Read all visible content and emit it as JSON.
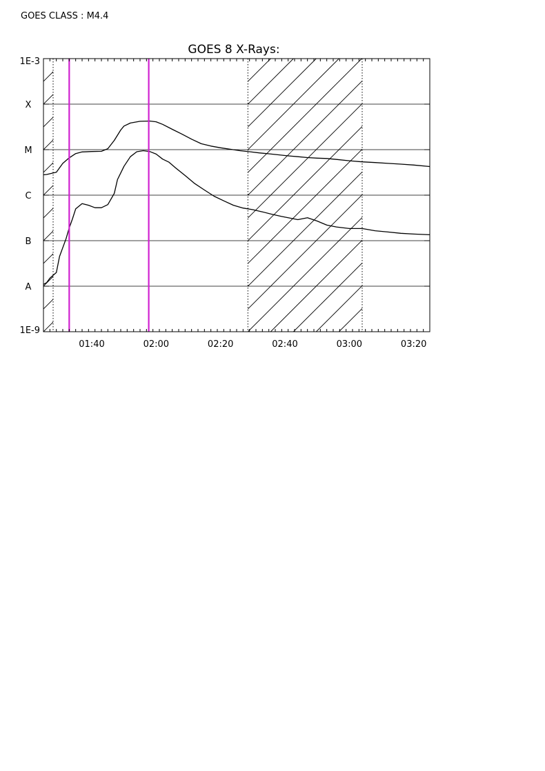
{
  "header": {
    "goes_class_text": "GOES CLASS : M4.4"
  },
  "colors": {
    "marker": "#d020d0",
    "curve": "#000000",
    "grid": "#000000"
  },
  "chart_data": {
    "type": "line",
    "title": "GOES 8 X-Rays:",
    "xlabel": "",
    "ylabel": "",
    "y_scale": "log",
    "ylim": [
      1e-09,
      0.001
    ],
    "xlim_minutes": [
      85,
      205
    ],
    "x_ticks": [
      {
        "minutes": 100,
        "label": "01:40"
      },
      {
        "minutes": 120,
        "label": "02:00"
      },
      {
        "minutes": 140,
        "label": "02:20"
      },
      {
        "minutes": 160,
        "label": "02:40"
      },
      {
        "minutes": 180,
        "label": "03:00"
      },
      {
        "minutes": 200,
        "label": "03:20"
      }
    ],
    "y_ticks": [
      {
        "value": 0.001,
        "label": "1E-3"
      },
      {
        "value": 0.0001,
        "label": "X"
      },
      {
        "value": 1e-05,
        "label": "M"
      },
      {
        "value": 1e-06,
        "label": "C"
      },
      {
        "value": 1e-07,
        "label": "B"
      },
      {
        "value": 1e-08,
        "label": "A"
      },
      {
        "value": 1e-09,
        "label": "1E-9"
      }
    ],
    "grid_lines_at": [
      0.0001,
      1e-05,
      1e-06,
      1e-07,
      1e-08
    ],
    "shaded_intervals_minutes": [
      [
        85,
        88
      ],
      [
        148.5,
        184
      ]
    ],
    "vertical_markers_minutes": [
      93,
      117.7
    ],
    "series": [
      {
        "x": [
          85,
          86,
          89,
          91,
          93,
          95,
          97,
          100,
          103,
          105,
          107,
          109,
          110,
          112,
          115,
          118,
          120,
          122,
          125,
          128,
          131,
          134,
          137,
          140,
          143,
          146,
          149,
          152,
          155,
          158,
          161,
          164,
          167,
          170,
          173,
          176,
          180,
          184,
          188,
          192,
          196,
          200,
          205
        ],
        "y": [
          2.8e-06,
          2.85e-06,
          3.2e-06,
          5e-06,
          6.6e-06,
          8.2e-06,
          8.9e-06,
          9.1e-06,
          9.2e-06,
          1.05e-05,
          1.6e-05,
          2.7e-05,
          3.3e-05,
          3.85e-05,
          4.2e-05,
          4.25e-05,
          4.1e-05,
          3.6e-05,
          2.8e-05,
          2.2e-05,
          1.7e-05,
          1.35e-05,
          1.2e-05,
          1.1e-05,
          1.02e-05,
          9.5e-06,
          9e-06,
          8.5e-06,
          8.1e-06,
          7.7e-06,
          7.3e-06,
          7e-06,
          6.7e-06,
          6.5e-06,
          6.4e-06,
          6.1e-06,
          5.7e-06,
          5.4e-06,
          5.2e-06,
          5e-06,
          4.8e-06,
          4.6e-06,
          4.25e-06
        ]
      },
      {
        "x": [
          85,
          86,
          87,
          89,
          90,
          92,
          93,
          94,
          95,
          97,
          99,
          101,
          103,
          105,
          107,
          108,
          110,
          112,
          114,
          116,
          118,
          120,
          122,
          124,
          126,
          129,
          132,
          135,
          138,
          141,
          144,
          147,
          150,
          153,
          156,
          159,
          162,
          164,
          167,
          170,
          173,
          176,
          180,
          184,
          188,
          192,
          196,
          200,
          205
        ],
        "y": [
          1.1e-08,
          1.2e-08,
          1.5e-08,
          2e-08,
          4.5e-08,
          1.1e-07,
          1.9e-07,
          3e-07,
          5e-07,
          6.5e-07,
          6e-07,
          5.3e-07,
          5.3e-07,
          6.2e-07,
          1.1e-06,
          2.2e-06,
          4.3e-06,
          7e-06,
          9e-06,
          9.5e-06,
          9.1e-06,
          8e-06,
          6.2e-06,
          5.3e-06,
          4e-06,
          2.7e-06,
          1.8e-06,
          1.3e-06,
          9.5e-07,
          7.5e-07,
          6e-07,
          5.2e-07,
          4.8e-07,
          4.3e-07,
          3.8e-07,
          3.4e-07,
          3.1e-07,
          2.9e-07,
          3.2e-07,
          2.7e-07,
          2.2e-07,
          2e-07,
          1.85e-07,
          1.85e-07,
          1.65e-07,
          1.55e-07,
          1.45e-07,
          1.4e-07,
          1.35e-07
        ]
      }
    ]
  }
}
